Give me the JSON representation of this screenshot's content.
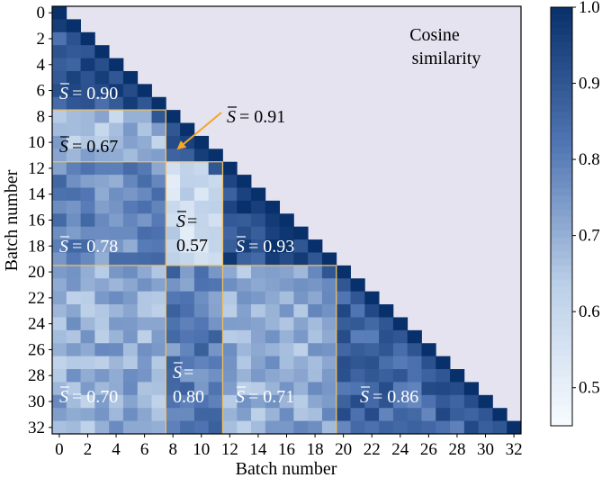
{
  "chart_data": {
    "type": "heatmap",
    "note_text": "Cosine similarity",
    "xlabel": "Batch number",
    "ylabel": "Batch number",
    "x_ticks": [
      "0",
      "2",
      "4",
      "6",
      "8",
      "10",
      "12",
      "14",
      "16",
      "18",
      "20",
      "22",
      "24",
      "26",
      "28",
      "30",
      "32"
    ],
    "y_ticks": [
      "0",
      "2",
      "4",
      "6",
      "8",
      "10",
      "12",
      "14",
      "16",
      "18",
      "20",
      "22",
      "24",
      "26",
      "28",
      "30",
      "32"
    ],
    "n_batches": 33,
    "color_range": [
      0.45,
      1.0
    ],
    "colorbar_ticks": [
      "0.5",
      "0.6",
      "0.7",
      "0.8",
      "0.9",
      "1.0"
    ],
    "colormap": [
      "#f7fbff",
      "#bcd0e8",
      "#5277b4",
      "#08306b"
    ],
    "background_color": "#e5e3f0",
    "divider_color": "#f0c060",
    "groups": [
      0,
      8,
      12,
      20,
      33
    ],
    "block_means": [
      {
        "rows": [
          0,
          7
        ],
        "cols": [
          0,
          7
        ],
        "mean_label": "= 0.90",
        "value": 0.9
      },
      {
        "rows": [
          8,
          11
        ],
        "cols": [
          0,
          7
        ],
        "mean_label": "= 0.67",
        "value": 0.67
      },
      {
        "rows": [
          8,
          11
        ],
        "cols": [
          8,
          11
        ],
        "mean_label": "= 0.91",
        "value": 0.91
      },
      {
        "rows": [
          12,
          19
        ],
        "cols": [
          0,
          7
        ],
        "mean_label": "= 0.78",
        "value": 0.78
      },
      {
        "rows": [
          12,
          19
        ],
        "cols": [
          8,
          11
        ],
        "mean_label": "= 0.57",
        "value": 0.57
      },
      {
        "rows": [
          12,
          19
        ],
        "cols": [
          12,
          19
        ],
        "mean_label": "= 0.93",
        "value": 0.93
      },
      {
        "rows": [
          20,
          32
        ],
        "cols": [
          0,
          7
        ],
        "mean_label": "= 0.70",
        "value": 0.7
      },
      {
        "rows": [
          20,
          32
        ],
        "cols": [
          8,
          11
        ],
        "mean_label": "= 0.80",
        "value": 0.8
      },
      {
        "rows": [
          20,
          32
        ],
        "cols": [
          12,
          19
        ],
        "mean_label": "= 0.71",
        "value": 0.71
      },
      {
        "rows": [
          20,
          32
        ],
        "cols": [
          20,
          32
        ],
        "mean_label": "= 0.86",
        "value": 0.86
      }
    ],
    "mean_symbol": "S"
  }
}
